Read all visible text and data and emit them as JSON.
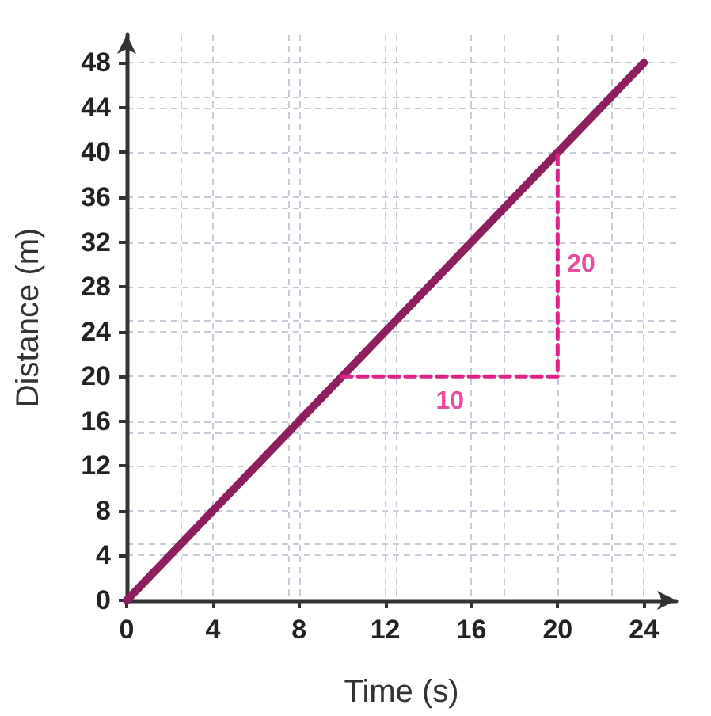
{
  "chart_data": {
    "type": "line",
    "xlabel": "Time (s)",
    "ylabel": "Distance (m)",
    "xlim": [
      0,
      25.5
    ],
    "ylim": [
      0,
      50.5
    ],
    "xticks": [
      0,
      4,
      8,
      12,
      16,
      20,
      24
    ],
    "yticks": [
      0,
      4,
      8,
      12,
      16,
      20,
      24,
      28,
      32,
      36,
      40,
      44,
      48
    ],
    "grid": true,
    "marker": "none",
    "series": [
      {
        "x": [
          0,
          24
        ],
        "values": [
          0,
          48
        ],
        "color": "#8e1f5e",
        "line_style": "solid"
      },
      {
        "x": [
          10,
          20,
          20
        ],
        "values": [
          20,
          20,
          40
        ],
        "color": "#e0218a",
        "line_style": "dashed"
      }
    ],
    "annotations": [
      {
        "text": "10",
        "x": 15,
        "y": 20
      },
      {
        "text": "20",
        "x": 20,
        "y": 30
      }
    ]
  }
}
